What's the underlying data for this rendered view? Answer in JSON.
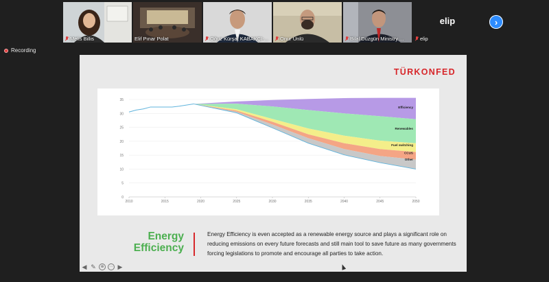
{
  "participants": [
    {
      "name": "Melis Billis",
      "muted": true
    },
    {
      "name": "Elif Pınar Polat",
      "muted": false
    },
    {
      "name": "Oğuz Kürşat KABAKÇI-...",
      "muted": true
    },
    {
      "name": "Onur Ünlü",
      "muted": true,
      "active": true
    },
    {
      "name": "Bilal Düzgün Ministry ...",
      "muted": true
    },
    {
      "name": "elip",
      "muted": true
    }
  ],
  "name_only_tile": {
    "display": "elip"
  },
  "next_page_icon": "chevron-right-icon",
  "recording": {
    "label": "Recording",
    "color": "#e04040"
  },
  "slide": {
    "logo": "TÜRKONFED",
    "heading_line1": "Energy",
    "heading_line2": "Efficiency",
    "body": "Energy Efficiency is even accepted as a renewable energy source and plays a significant role on reducing emissions on every future forecasts and still main tool to save future as many governments forcing legislations to promote and encourage all parties to take action.",
    "accent_green": "#4caf50",
    "accent_red": "#d7262a"
  },
  "chart_data": {
    "type": "area",
    "title": "",
    "xlabel": "",
    "ylabel": "",
    "x_ticks": [
      "2010",
      "2015",
      "2020",
      "2025",
      "2030",
      "2035",
      "2040",
      "2045",
      "2050"
    ],
    "y_ticks": [
      "0",
      "5",
      "10",
      "15",
      "20",
      "25",
      "30",
      "35"
    ],
    "xlim": [
      2010,
      2050
    ],
    "ylim": [
      0,
      35
    ],
    "historical": {
      "x": [
        2010,
        2011,
        2012,
        2013,
        2014,
        2015,
        2016,
        2017,
        2018,
        2019
      ],
      "y": [
        30.5,
        31.2,
        31.6,
        32.3,
        32.3,
        32.3,
        32.3,
        32.6,
        33.0,
        33.4
      ],
      "color": "#5fb3dc"
    },
    "projection_x": [
      2019,
      2025,
      2030,
      2035,
      2040,
      2045,
      2050
    ],
    "series": [
      {
        "name": "Efficiency",
        "color": "#b79ae6",
        "values": [
          33.4,
          34.3,
          34.8,
          35.2,
          35.5,
          35.6,
          35.6
        ]
      },
      {
        "name": "Renewables",
        "color": "#9fe8b4",
        "values": [
          33.4,
          33.5,
          32.5,
          31.2,
          30.0,
          29.0,
          27.9
        ]
      },
      {
        "name": "Fuel switching",
        "color": "#f4ee8a",
        "values": [
          33.4,
          31.5,
          28.0,
          24.6,
          22.0,
          20.2,
          19.3
        ]
      },
      {
        "name": "CCUS",
        "color": "#f4a585",
        "values": [
          33.4,
          31.0,
          27.0,
          22.5,
          19.3,
          17.2,
          16.1
        ]
      },
      {
        "name": "Other",
        "color": "#c8c8c8",
        "values": [
          33.4,
          30.6,
          26.0,
          21.1,
          17.2,
          14.7,
          13.4
        ]
      }
    ],
    "baseline": {
      "values": [
        33.4,
        30.2,
        24.8,
        19.3,
        15.1,
        12.3,
        10.0
      ],
      "color": "#5fb3dc"
    },
    "grid": true,
    "legend": "inline labels"
  }
}
